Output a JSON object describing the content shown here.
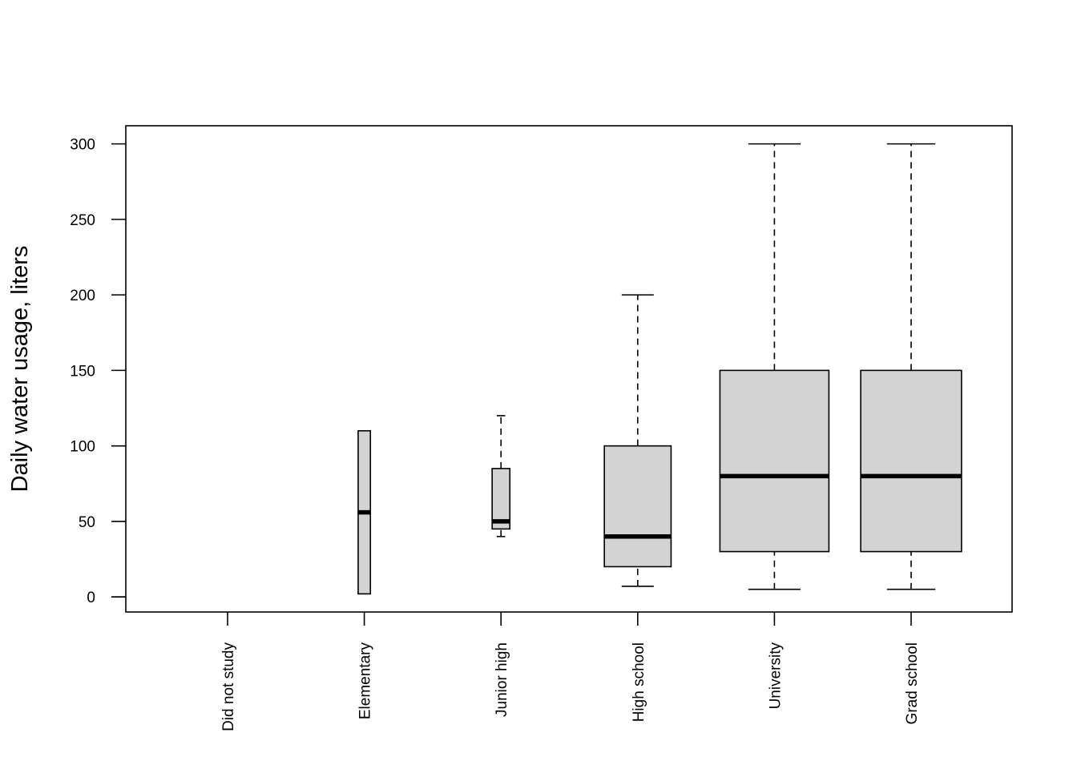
{
  "chart_data": {
    "type": "boxplot",
    "title": "",
    "xlabel": "",
    "ylabel": "Daily water usage, liters",
    "ylim": [
      -10,
      312
    ],
    "yticks": [
      0,
      50,
      100,
      150,
      200,
      250,
      300
    ],
    "grid": false,
    "legend": "none",
    "colors": {
      "box_fill": "#d3d3d3",
      "line": "#000000",
      "background": "#ffffff"
    },
    "categories": [
      "Did not study",
      "Elementary",
      "Junior high",
      "High school",
      "University",
      "Grad school"
    ],
    "boxes": [
      {
        "category": "Did not study",
        "min": null,
        "q1": null,
        "median": null,
        "q3": null,
        "max": null,
        "width_ratio": 0
      },
      {
        "category": "Elementary",
        "min": 2,
        "q1": 2,
        "median": 56,
        "q3": 110,
        "max": 110,
        "width_ratio": 0.09
      },
      {
        "category": "Junior high",
        "min": 40,
        "q1": 45,
        "median": 50,
        "q3": 85,
        "max": 120,
        "width_ratio": 0.13
      },
      {
        "category": "High school",
        "min": 7,
        "q1": 20,
        "median": 40,
        "q3": 100,
        "max": 200,
        "width_ratio": 0.49
      },
      {
        "category": "University",
        "min": 5,
        "q1": 30,
        "median": 80,
        "q3": 150,
        "max": 300,
        "width_ratio": 0.8
      },
      {
        "category": "Grad school",
        "min": 5,
        "q1": 30,
        "median": 80,
        "q3": 150,
        "max": 300,
        "width_ratio": 0.74
      }
    ]
  }
}
